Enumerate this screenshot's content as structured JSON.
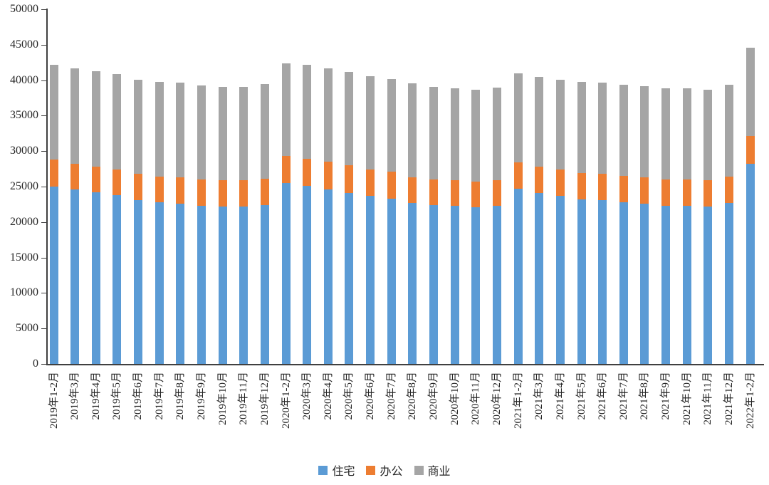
{
  "chart_data": {
    "type": "bar",
    "stacked": true,
    "title": "",
    "xlabel": "",
    "ylabel": "",
    "ylim": [
      0,
      50000
    ],
    "ytick_step": 5000,
    "yticks": [
      0,
      5000,
      10000,
      15000,
      20000,
      25000,
      30000,
      35000,
      40000,
      45000,
      50000
    ],
    "grid": false,
    "legend_position": "bottom",
    "categories": [
      "2019年1-2月",
      "2019年3月",
      "2019年4月",
      "2019年5月",
      "2019年6月",
      "2019年7月",
      "2019年8月",
      "2019年9月",
      "2019年10月",
      "2019年11月",
      "2019年12月",
      "2020年1-2月",
      "2020年3月",
      "2020年4月",
      "2020年5月",
      "2020年6月",
      "2020年7月",
      "2020年8月",
      "2020年9月",
      "2020年10月",
      "2020年11月",
      "2020年12月",
      "2021年1-2月",
      "2021年3月",
      "2021年4月",
      "2021年5月",
      "2021年6月",
      "2021年7月",
      "2021年8月",
      "2021年9月",
      "2021年10月",
      "2021年11月",
      "2021年12月",
      "2022年1-2月"
    ],
    "series": [
      {
        "name": "住宅",
        "color": "#5B9BD5",
        "values": [
          25000,
          24600,
          24200,
          23800,
          23100,
          22800,
          22600,
          22300,
          22200,
          22200,
          22400,
          25500,
          25100,
          24600,
          24100,
          23700,
          23300,
          22700,
          22400,
          22300,
          22100,
          22300,
          24700,
          24100,
          23700,
          23200,
          23100,
          22800,
          22600,
          22300,
          22300,
          22200,
          22700,
          28200
        ]
      },
      {
        "name": "办公",
        "color": "#ED7D31",
        "values": [
          3800,
          3600,
          3600,
          3600,
          3700,
          3600,
          3700,
          3700,
          3700,
          3700,
          3700,
          3800,
          3800,
          3900,
          3900,
          3700,
          3800,
          3600,
          3600,
          3600,
          3600,
          3600,
          3700,
          3700,
          3700,
          3700,
          3700,
          3700,
          3700,
          3700,
          3700,
          3700,
          3700,
          3900
        ]
      },
      {
        "name": "商业",
        "color": "#A5A5A5",
        "values": [
          13400,
          13500,
          13500,
          13500,
          13300,
          13400,
          13400,
          13300,
          13200,
          13200,
          13400,
          13100,
          13300,
          13200,
          13200,
          13200,
          13100,
          13300,
          13100,
          13000,
          13000,
          13100,
          12600,
          12700,
          12700,
          12900,
          12900,
          12900,
          12900,
          12900,
          12900,
          12800,
          13000,
          12500
        ]
      }
    ]
  }
}
